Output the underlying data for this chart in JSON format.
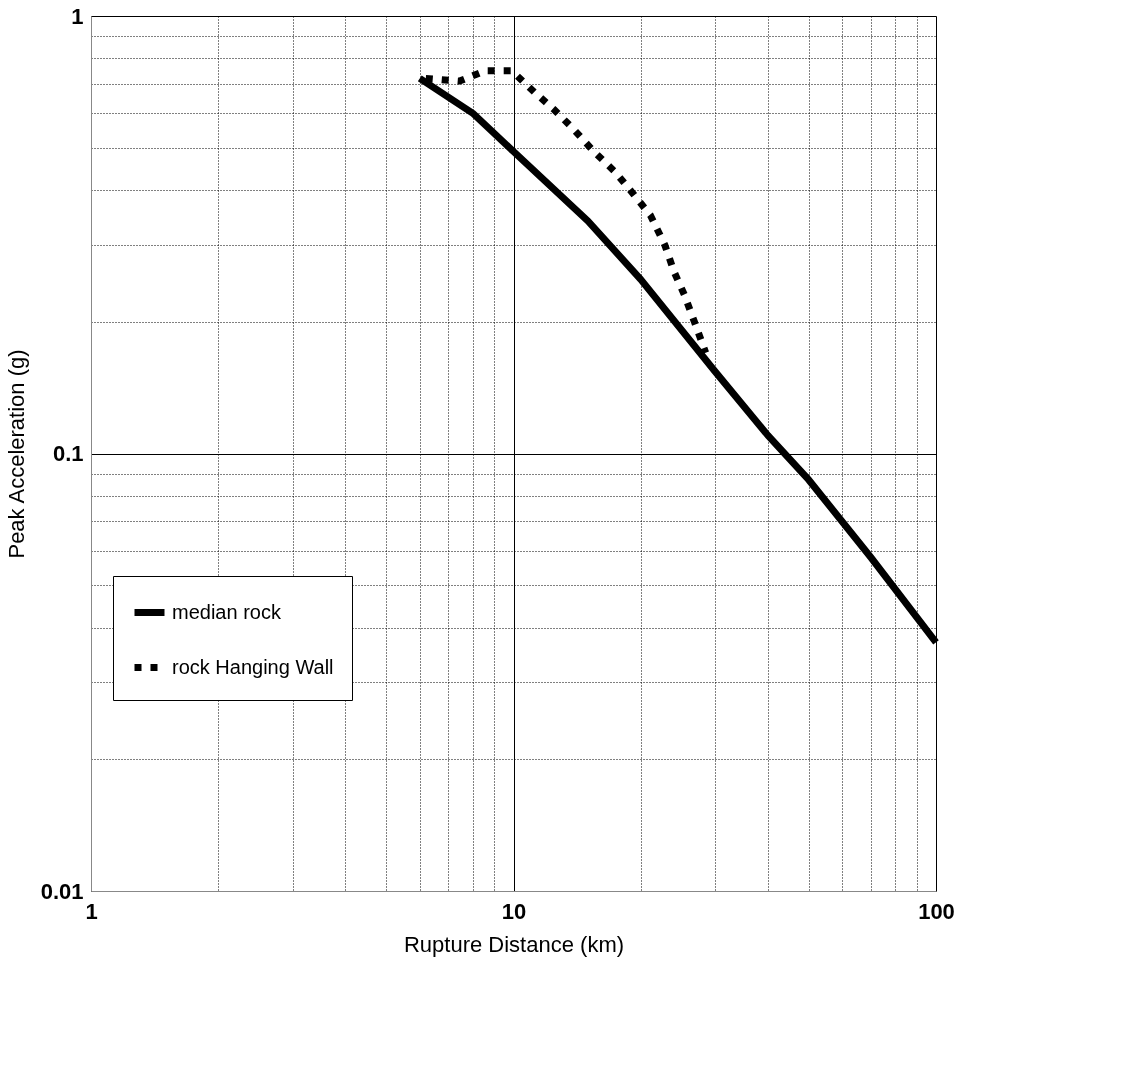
{
  "chart_data": {
    "type": "line",
    "xlabel": "Rupture Distance (km)",
    "ylabel": "Peak Acceleration (g)",
    "log": "xy",
    "grid": true,
    "legend": "bottom left",
    "marker": "none",
    "xlim": [
      1,
      100
    ],
    "ylim": [
      0.01,
      1
    ],
    "xticks": [
      1,
      {
        "value": 2,
        "label": null
      },
      {
        "value": 3,
        "label": null
      },
      {
        "value": 4,
        "label": null
      },
      {
        "value": 5,
        "label": null
      },
      {
        "value": 6,
        "label": null
      },
      {
        "value": 7,
        "label": null
      },
      {
        "value": 8,
        "label": null
      },
      {
        "value": 9,
        "label": null
      },
      10,
      {
        "value": 20,
        "label": null
      },
      {
        "value": 30,
        "label": null
      },
      {
        "value": 40,
        "label": null
      },
      {
        "value": 50,
        "label": null
      },
      {
        "value": 60,
        "label": null
      },
      {
        "value": 70,
        "label": null
      },
      {
        "value": 80,
        "label": null
      },
      {
        "value": 90,
        "label": null
      },
      100
    ],
    "yticks": [
      0.01,
      {
        "value": 0.02,
        "label": null
      },
      {
        "value": 0.03,
        "label": null
      },
      {
        "value": 0.04,
        "label": null
      },
      {
        "value": 0.05,
        "label": null
      },
      {
        "value": 0.06,
        "label": null
      },
      {
        "value": 0.07,
        "label": null
      },
      {
        "value": 0.08,
        "label": null
      },
      {
        "value": 0.09,
        "label": null
      },
      0.1,
      {
        "value": 0.2,
        "label": null
      },
      {
        "value": 0.3,
        "label": null
      },
      {
        "value": 0.4,
        "label": null
      },
      {
        "value": 0.5,
        "label": null
      },
      {
        "value": 0.6,
        "label": null
      },
      {
        "value": 0.7,
        "label": null
      },
      {
        "value": 0.8,
        "label": null
      },
      {
        "value": 0.9,
        "label": null
      },
      1
    ],
    "series": [
      {
        "name": "median rock",
        "color": "#000000",
        "line_style": "solid",
        "x": [
          6,
          8,
          10,
          15,
          20,
          30,
          40,
          50,
          70,
          100
        ],
        "values": [
          0.72,
          0.6,
          0.49,
          0.34,
          0.25,
          0.154,
          0.11,
          0.087,
          0.058,
          0.037
        ]
      },
      {
        "name": "rock Hanging Wall",
        "color": "#000000",
        "line_style": "dotted",
        "x": [
          6.2,
          7.45,
          8.6,
          9.9,
          11.2,
          12.5,
          13.9,
          15.5,
          17.4,
          19.3,
          21.1,
          22.8,
          24,
          25.4,
          26.8,
          28.5
        ],
        "values": [
          0.72,
          0.71,
          0.75,
          0.75,
          0.67,
          0.61,
          0.55,
          0.49,
          0.44,
          0.39,
          0.35,
          0.3,
          0.26,
          0.23,
          0.2,
          0.17
        ]
      }
    ]
  }
}
